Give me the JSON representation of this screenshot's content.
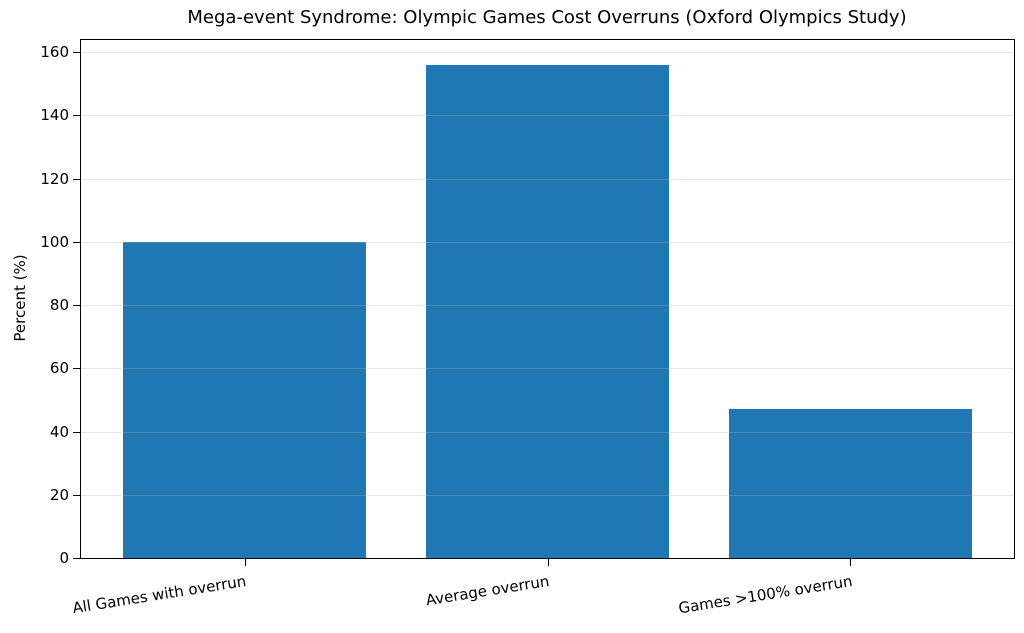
{
  "figure": {
    "background_color": "#ffffff",
    "text_color": "#000000"
  },
  "chart_data": {
    "type": "bar",
    "title": "Mega-event Syndrome: Olympic Games Cost Overruns (Oxford Olympics Study)",
    "xlabel": "",
    "ylabel": "Percent (%)",
    "categories": [
      "All Games with overrun",
      "Average overrun",
      "Games >100% overrun"
    ],
    "values": [
      100,
      156,
      47
    ],
    "yticks": [
      0,
      20,
      40,
      60,
      80,
      100,
      120,
      140,
      160
    ],
    "ylim": [
      0,
      163.8
    ],
    "bar_color": "#1f77b4",
    "bar_width_fraction": 0.8,
    "xtick_rotation_deg": -9,
    "grid": {
      "axis": "y",
      "color": "#b0b0b0",
      "opacity": 0.3,
      "drawn_over_bars": true
    },
    "legend": "none"
  }
}
